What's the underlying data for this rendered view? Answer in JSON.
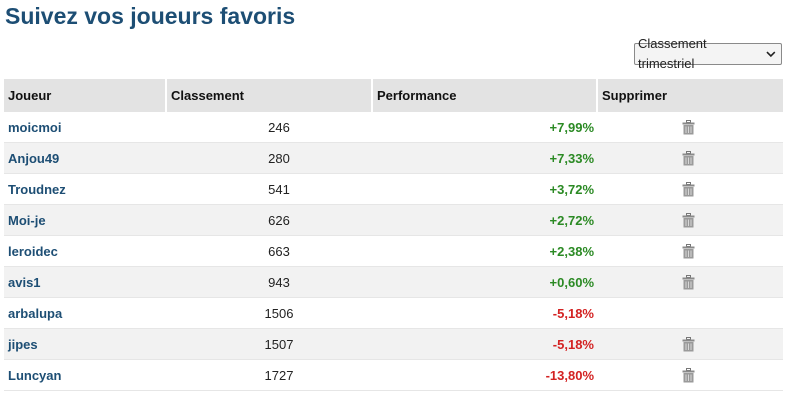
{
  "page_title": "Suivez vos joueurs favoris",
  "ranking_select": {
    "selected": "Classement trimestriel"
  },
  "table": {
    "headers": {
      "player": "Joueur",
      "rank": "Classement",
      "performance": "Performance",
      "delete": "Supprimer"
    },
    "rows": [
      {
        "player": "moicmoi",
        "rank": "246",
        "performance": "+7,99%",
        "trend": "positive",
        "deletable": true
      },
      {
        "player": "Anjou49",
        "rank": "280",
        "performance": "+7,33%",
        "trend": "positive",
        "deletable": true
      },
      {
        "player": "Troudnez",
        "rank": "541",
        "performance": "+3,72%",
        "trend": "positive",
        "deletable": true
      },
      {
        "player": "Moi-je",
        "rank": "626",
        "performance": "+2,72%",
        "trend": "positive",
        "deletable": true
      },
      {
        "player": "leroidec",
        "rank": "663",
        "performance": "+2,38%",
        "trend": "positive",
        "deletable": true
      },
      {
        "player": "avis1",
        "rank": "943",
        "performance": "+0,60%",
        "trend": "positive",
        "deletable": true
      },
      {
        "player": "arbalupa",
        "rank": "1506",
        "performance": "-5,18%",
        "trend": "negative",
        "deletable": false
      },
      {
        "player": "jipes",
        "rank": "1507",
        "performance": "-5,18%",
        "trend": "negative",
        "deletable": true
      },
      {
        "player": "Luncyan",
        "rank": "1727",
        "performance": "-13,80%",
        "trend": "negative",
        "deletable": true
      }
    ]
  },
  "colors": {
    "title": "#1d4e74",
    "player_link": "#1d4e74",
    "positive": "#2b8a24",
    "negative": "#d32222",
    "header_bg": "#e3e3e3",
    "stripe_bg": "#f2f2f2"
  },
  "icons": {
    "delete": "trash-icon",
    "dropdown": "chevron-down-icon"
  }
}
